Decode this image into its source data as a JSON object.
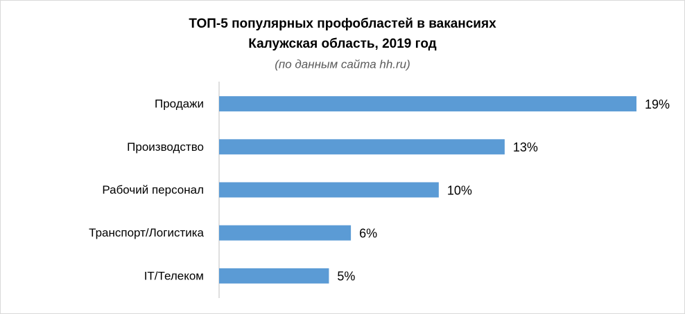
{
  "chart_data": {
    "type": "bar",
    "orientation": "horizontal",
    "title": [
      "ТОП-5 популярных профобластей в вакансиях",
      "Калужская область, 2019 год"
    ],
    "subtitle": "(по данным сайта hh.ru)",
    "categories": [
      "Продажи",
      "Производство",
      "Рабочий персонал",
      "Транспорт/Логистика",
      "IT/Телеком"
    ],
    "values": [
      19,
      13,
      10,
      6,
      5
    ],
    "value_labels": [
      "19%",
      "13%",
      "10%",
      "6%",
      "5%"
    ],
    "color": "#5b9bd5"
  }
}
